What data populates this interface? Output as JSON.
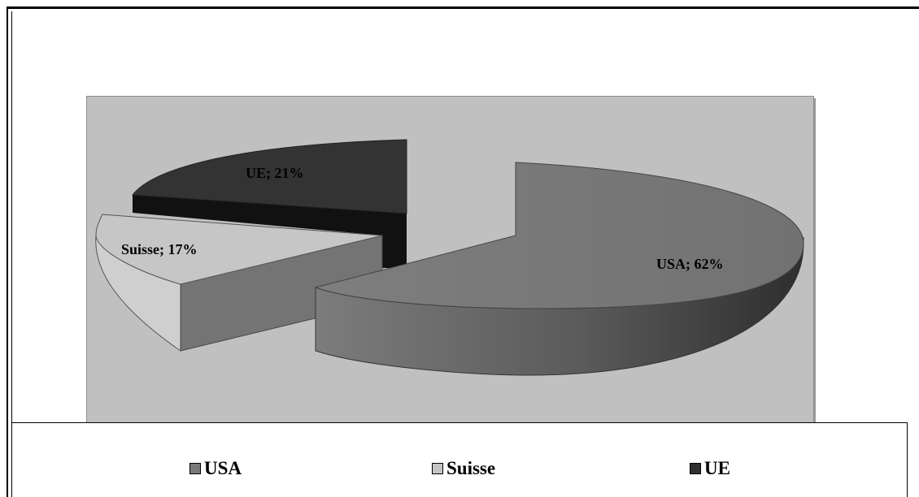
{
  "chart_data": {
    "type": "pie",
    "style": "3d-exploded",
    "categories": [
      "USA",
      "Suisse",
      "UE"
    ],
    "values": [
      62,
      17,
      21
    ],
    "unit": "%",
    "data_labels": [
      "USA; 62%",
      "Suisse; 17%",
      "UE; 21%"
    ],
    "legend": {
      "placement": "bottom",
      "entries": [
        "USA",
        "Suisse",
        "UE"
      ]
    },
    "colors": {
      "USA": "#7a7a7a",
      "Suisse": "#c4c4c4",
      "UE": "#303030"
    }
  }
}
